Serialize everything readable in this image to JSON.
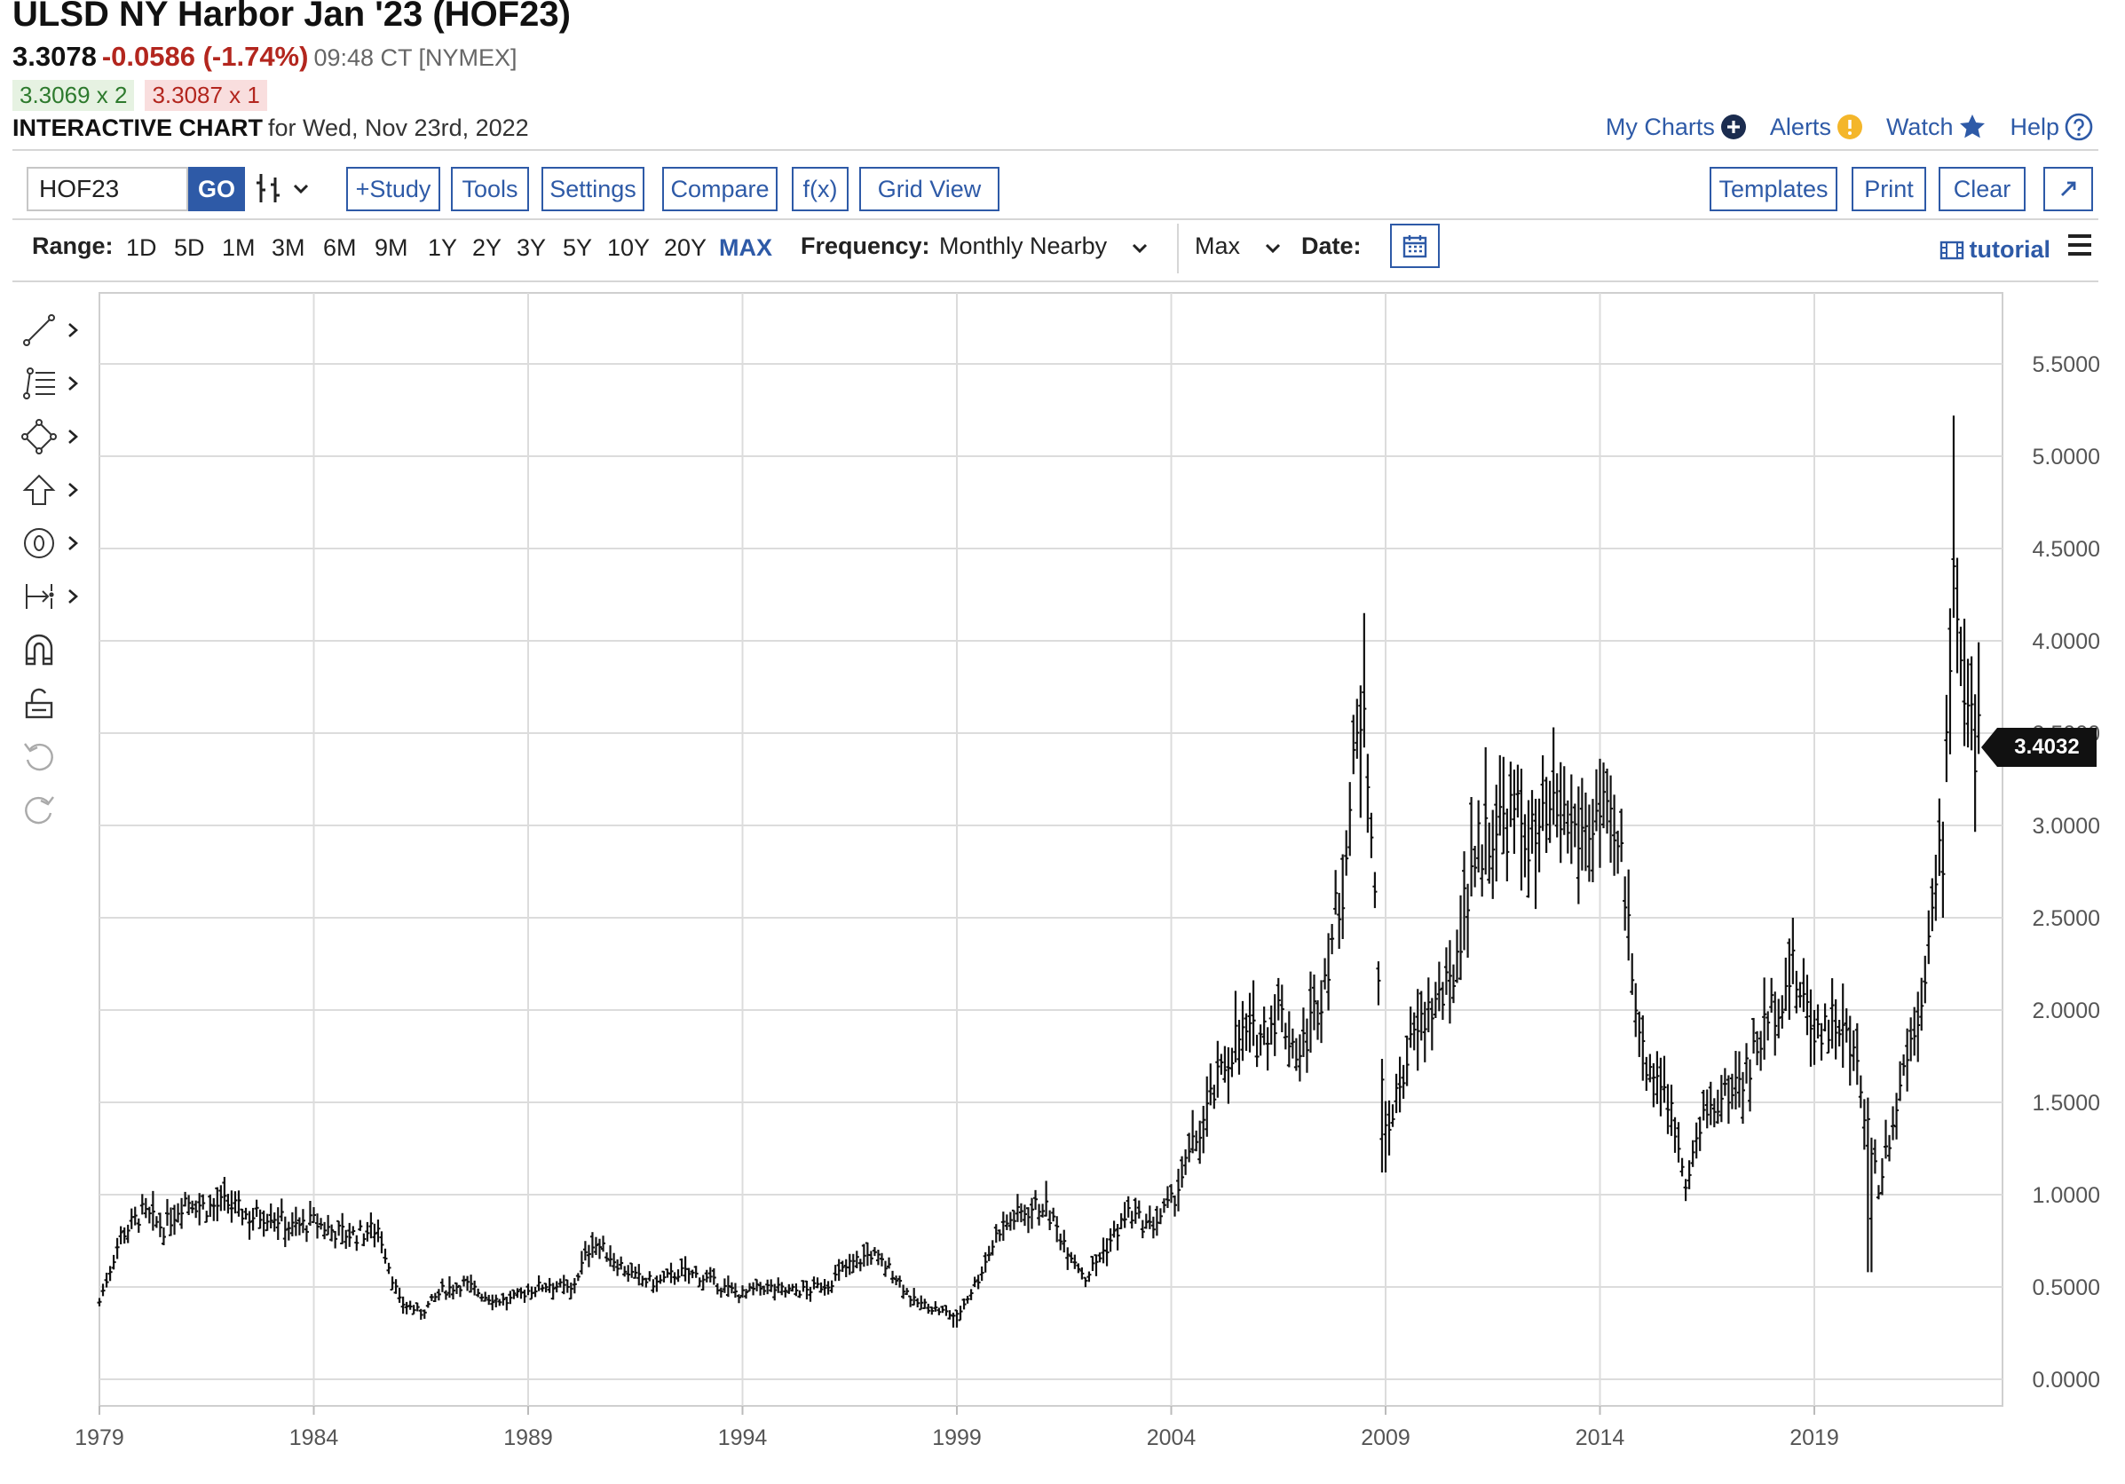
{
  "header": {
    "title": "ULSD NY Harbor Jan '23 (HOF23)",
    "last": "3.3078",
    "change": "-0.0586 (-1.74%)",
    "time": "09:48 CT [NYMEX]",
    "bid": "3.3069 x 2",
    "ask": "3.3087 x 1",
    "chart_label": "INTERACTIVE CHART",
    "chart_date": "for Wed, Nov 23rd, 2022"
  },
  "links": {
    "my_charts": "My Charts",
    "alerts": "Alerts",
    "watch": "Watch",
    "help": "Help"
  },
  "toolbar": {
    "symbol": "HOF23",
    "go": "GO",
    "study": "+Study",
    "tools": "Tools",
    "settings": "Settings",
    "compare": "Compare",
    "fx": "f(x)",
    "grid_view": "Grid View",
    "templates": "Templates",
    "print": "Print",
    "clear": "Clear"
  },
  "range": {
    "label": "Range:",
    "options": [
      "1D",
      "5D",
      "1M",
      "3M",
      "6M",
      "9M",
      "1Y",
      "2Y",
      "3Y",
      "5Y",
      "10Y",
      "20Y",
      "MAX"
    ],
    "active": "MAX",
    "frequency_label": "Frequency:",
    "frequency": "Monthly Nearby",
    "max": "Max",
    "date_label": "Date:",
    "tutorial": "tutorial"
  },
  "price_badge": "3.4032",
  "chart_data": {
    "type": "ohlc",
    "frequency": "monthly",
    "ylim": [
      0,
      5.75
    ],
    "y_ticks": [
      "0.0000",
      "0.5000",
      "1.0000",
      "1.5000",
      "2.0000",
      "2.5000",
      "3.0000",
      "3.5000",
      "4.0000",
      "4.5000",
      "5.0000",
      "5.5000"
    ],
    "x_ticks": [
      "1979",
      "1984",
      "1989",
      "1994",
      "1999",
      "2004",
      "2009",
      "2014",
      "2019"
    ],
    "last_price": 3.4032,
    "approx_close_by_year": [
      [
        1979.0,
        0.42
      ],
      [
        1979.5,
        0.78
      ],
      [
        1980.0,
        0.9
      ],
      [
        1980.5,
        0.82
      ],
      [
        1981.0,
        0.98
      ],
      [
        1981.5,
        0.93
      ],
      [
        1982.0,
        0.95
      ],
      [
        1982.5,
        0.88
      ],
      [
        1983.0,
        0.9
      ],
      [
        1983.5,
        0.82
      ],
      [
        1984.0,
        0.85
      ],
      [
        1984.5,
        0.8
      ],
      [
        1985.0,
        0.78
      ],
      [
        1985.5,
        0.82
      ],
      [
        1986.0,
        0.42
      ],
      [
        1986.5,
        0.36
      ],
      [
        1987.0,
        0.48
      ],
      [
        1987.5,
        0.52
      ],
      [
        1988.0,
        0.45
      ],
      [
        1988.5,
        0.42
      ],
      [
        1989.0,
        0.48
      ],
      [
        1989.5,
        0.52
      ],
      [
        1990.0,
        0.48
      ],
      [
        1990.5,
        0.75
      ],
      [
        1991.0,
        0.65
      ],
      [
        1991.5,
        0.55
      ],
      [
        1992.0,
        0.52
      ],
      [
        1992.5,
        0.58
      ],
      [
        1993.0,
        0.56
      ],
      [
        1993.5,
        0.5
      ],
      [
        1994.0,
        0.46
      ],
      [
        1994.5,
        0.5
      ],
      [
        1995.0,
        0.48
      ],
      [
        1995.5,
        0.48
      ],
      [
        1996.0,
        0.52
      ],
      [
        1996.5,
        0.62
      ],
      [
        1997.0,
        0.68
      ],
      [
        1997.5,
        0.58
      ],
      [
        1998.0,
        0.42
      ],
      [
        1998.5,
        0.38
      ],
      [
        1999.0,
        0.34
      ],
      [
        1999.5,
        0.55
      ],
      [
        2000.0,
        0.82
      ],
      [
        2000.5,
        0.9
      ],
      [
        2001.0,
        0.95
      ],
      [
        2001.5,
        0.75
      ],
      [
        2002.0,
        0.55
      ],
      [
        2002.5,
        0.72
      ],
      [
        2003.0,
        0.9
      ],
      [
        2003.5,
        0.82
      ],
      [
        2004.0,
        0.95
      ],
      [
        2004.5,
        1.25
      ],
      [
        2005.0,
        1.55
      ],
      [
        2005.5,
        1.85
      ],
      [
        2006.0,
        1.85
      ],
      [
        2006.5,
        2.0
      ],
      [
        2007.0,
        1.75
      ],
      [
        2007.5,
        2.1
      ],
      [
        2008.0,
        2.7
      ],
      [
        2008.5,
        3.8
      ],
      [
        2009.0,
        1.3
      ],
      [
        2009.5,
        1.75
      ],
      [
        2010.0,
        2.0
      ],
      [
        2010.5,
        2.1
      ],
      [
        2011.0,
        2.8
      ],
      [
        2011.5,
        3.0
      ],
      [
        2012.0,
        3.05
      ],
      [
        2012.5,
        2.9
      ],
      [
        2013.0,
        3.05
      ],
      [
        2013.5,
        2.95
      ],
      [
        2014.0,
        3.05
      ],
      [
        2014.5,
        2.8
      ],
      [
        2015.0,
        1.75
      ],
      [
        2015.5,
        1.6
      ],
      [
        2016.0,
        1.1
      ],
      [
        2016.5,
        1.45
      ],
      [
        2017.0,
        1.55
      ],
      [
        2017.5,
        1.7
      ],
      [
        2018.0,
        2.0
      ],
      [
        2018.5,
        2.2
      ],
      [
        2019.0,
        1.9
      ],
      [
        2019.5,
        1.95
      ],
      [
        2020.0,
        1.7
      ],
      [
        2020.5,
        1.05
      ],
      [
        2021.0,
        1.6
      ],
      [
        2021.5,
        2.1
      ],
      [
        2022.0,
        2.9
      ],
      [
        2022.25,
        4.5
      ],
      [
        2022.5,
        3.6
      ],
      [
        2022.9,
        3.4
      ]
    ],
    "notable_extremes": {
      "high_2008": 4.15,
      "high_2022": 5.22,
      "low_1999": 0.28,
      "low_2020": 0.58
    }
  }
}
